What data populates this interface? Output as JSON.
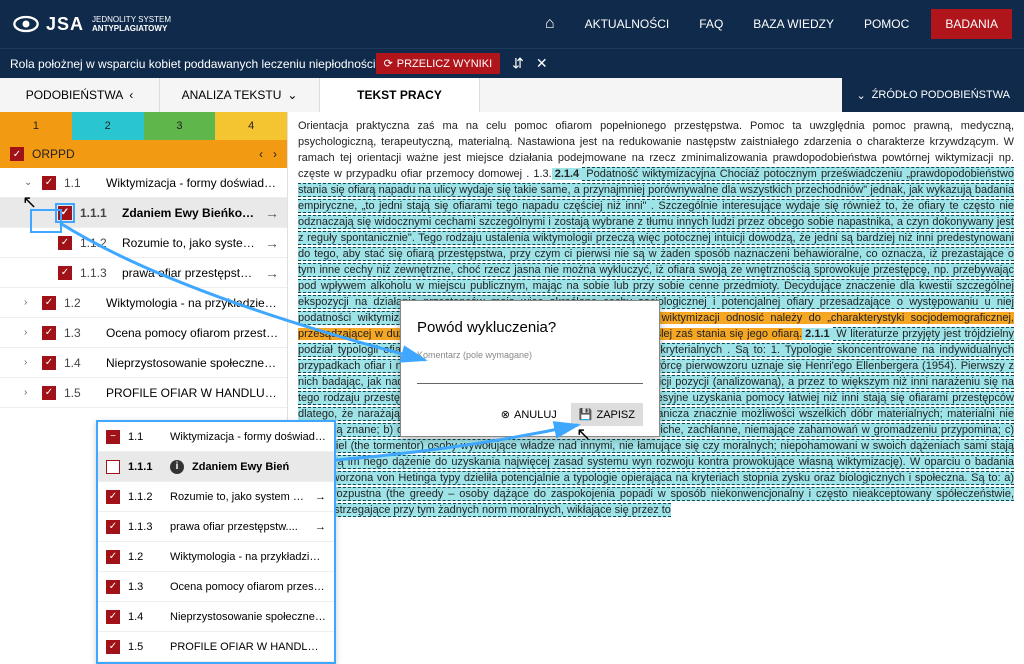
{
  "brand": {
    "name": "JSA",
    "sub1": "JEDNOLITY SYSTEM",
    "sub2": "ANTYPLAGIATOWY"
  },
  "nav": {
    "home": "⌂",
    "aktualnosci": "AKTUALNOŚCI",
    "faq": "FAQ",
    "baza": "BAZA WIEDZY",
    "pomoc": "POMOC",
    "badania": "BADANIA"
  },
  "subbar": {
    "title": "Rola położnej w wsparciu kobiet poddawanych leczeniu niepłodności",
    "recalc": "PRZELICZ WYNIKI",
    "collapse": "⇵",
    "close": "✕"
  },
  "tabs": {
    "t1": "PODOBIEŃSTWA",
    "arrow1": "‹",
    "t2": "ANALIZA TEKSTU",
    "arrow2": "⌄",
    "t3": "TEKST PRACY",
    "source": "ŹRÓDŁO PODOBIEŃSTWA",
    "sarrow": "⌄"
  },
  "colors": {
    "c1": "1",
    "c2": "2",
    "c3": "3",
    "c4": "4"
  },
  "orppd": {
    "label": "ORPPD",
    "prev": "‹",
    "next": "›"
  },
  "tree": [
    {
      "exp": "⌄",
      "num": "1.1",
      "label": "Wiktymizacja - formy doświadcza...",
      "indent": 1
    },
    {
      "exp": "",
      "num": "1.1.1",
      "label": "Zdaniem Ewy Bieńkowskiej....",
      "indent": 2,
      "selected": true,
      "arrow": "→"
    },
    {
      "exp": "",
      "num": "1.1.2",
      "label": "Rozumie to, jako system cec...",
      "indent": 2,
      "arrow": "→"
    },
    {
      "exp": "",
      "num": "1.1.3",
      "label": "prawa ofiar przestępstw...",
      "indent": 2,
      "arrow": "→"
    },
    {
      "exp": "›",
      "num": "1.2",
      "label": "Wiktymologia - na przykładzie of...",
      "indent": 1
    },
    {
      "exp": "›",
      "num": "1.3",
      "label": "Ocena pomocy ofiarom przestę...",
      "indent": 1
    },
    {
      "exp": "›",
      "num": "1.4",
      "label": "Nieprzystosowanie społeczne dzi...",
      "indent": 1
    },
    {
      "exp": "›",
      "num": "1.5",
      "label": "PROFILE OFIAR W HANDLU LU...",
      "indent": 1
    }
  ],
  "popup": [
    {
      "chk": "minus",
      "num": "1.1",
      "label": "Wiktymizacja - formy doświadcza..."
    },
    {
      "chk": "empty",
      "num": "1.1.1",
      "label": "Zdaniem Ewy Bień",
      "selected": true,
      "info": true
    },
    {
      "chk": "",
      "num": "1.1.2",
      "label": "Rozumie to, jako system cec...",
      "arrow": "→"
    },
    {
      "chk": "",
      "num": "1.1.3",
      "label": "prawa ofiar przestępstw....",
      "arrow": "→"
    },
    {
      "chk": "",
      "num": "1.2",
      "label": "Wiktymologia - na przykładzie of..."
    },
    {
      "chk": "",
      "num": "1.3",
      "label": "Ocena pomocy ofiarom przestę..."
    },
    {
      "chk": "",
      "num": "1.4",
      "label": "Nieprzystosowanie społeczne dzi..."
    },
    {
      "chk": "",
      "num": "1.5",
      "label": "PROFILE OFIAR W HANDLU LU..."
    }
  ],
  "modal": {
    "title": "Powód wykluczenia?",
    "hint": "Komentarz (pole wymagane)",
    "cancel": "ANULUJ",
    "save": "ZAPISZ"
  },
  "text": {
    "p1a": "Orientacja praktyczna zaś ma na celu pomoc ofiarom popełnionego przestępstwa. Pomoc ta uwzględnia pomoc prawną, medyczną, psychologiczną, terapeutyczną, materialną. Nastawiona jest na redukowanie następstw zaistniałego zdarzenia o charakterze krzywdzącym. W ramach tej orientacji ważne jest miejsce działania podejmowane na rzecz zminimalizowania prawdopodobieństwa powtórnej wiktymizacji np. częste w przypadku ofiar przemocy domowej . 1.3.",
    "b1": "2.1.4",
    "p1b": " Podatność wiktymizacyjna Chociaż potocznym przeświadczeniu „prawdopodobieństwo stania się ofiarą napadu na ulicy wydaje się takie same, a przynajmniej porównywalne dla wszystkich przechodniów\" jednak, jak wykazują badania empiryczne, „to jedni stają się ofiarami tego napadu częściej niż inni\" . Szczególnie interesujące wydaje się również to, że ofiary te często nie odznaczają się widocznymi cechami szczególnymi i zostają wybrane z tłumu innych ludzi przez obcego sobie napastnika, a czyn dokonywany jest z reguły spontanicznie\". Tego rodzaju ustalenia wiktymologii przeczą więc potocznej intuicji dowodzą, że jedni są bardziej niż inni predestynowani do tego, aby stać się ofiarą przestępstwa, przy czym ci pierwsi nie są w żaden sposób naznaczeni behawioralne, co oznacza, iż prezastające o tym inne cechy niż zewnętrzne, choć rzecz jasna nie można wykluczyć, iż ofiara swoją ze wnętrznością sprowokuje przestępcę, np. przebywając pod wpływem alkoholu w miejscu publicznym, mając na sobie lub przy sobie cenne przedmioty. Decydujące znaczenie dla kwestii szczególnej ekspozycji na działania przestępców mają więc określone cechy socjologicznej i potencjalnej ofiary przesadzające o występowaniu u niej podatności wiktymizacyjne.",
    "b2": "1.1.1",
    "p2": " Zdaniem Ewy Bieńkowskiej, pojęcie wiktymizacji odnosić należy do „charakterystyki socjodemograficznej, przesądzającej w dużej mierze „o stopniu narażenia przestępstwem\", ściślej zaś stania się jego ofiarą.",
    "b3": "2.1.1",
    "p3": " W literaturze przyjęty jest trójdzielny podział typologii ofiar, wyodrębniony według odmiennych nich cechach kryterialnych . Są to: 1. Typologie skoncentrowane na indywidualnych przypadkach ofiar i na tej podstawie tworzące generalne kategorie. Za twórcę pierwowzoru uznaje się Henri'ego Ellenbergera (1954). Pierwszy z nich badając, jak nadmieniono swoim zachowaniom nikt podobną z definicji pozycji (analizowaną), a przez to większym niż inni narażeniu się na tego rodzaju przestępstw; a) typ depresyjny (the depressive osoby depresyjne uzyskania pomocy łatwiej niż inni stają się ofiarami przestępców dlatego, że narażają nie żyją z izolacją społeczną, samotnością, co ogranicza znacznie możliwości wszelkich dóbr materialnych; materialni nie wpływają znane; b) osoby zachowań nie mówiąc o chęci gani jednostki ciche, zachłanne, niemające zahamowań w gromadzeniu przypomina; c) dręczyciel (the tormentor) osoby wywołujące władze nad innymi, nie łamujące się czy moralnych; niepohamowani w swoich dążeniach sami stają się ofiarą im nego dążenie do uzyskania najwięcej zasad systemu wyn rozwoju kontra prowokujące własną wiktymizację). W oparciu o badania ofiar stworzona von Hetinga typy dzieliła potencjalnie a typologie opierająca na kryteriach stopnia zysku oraz biologicznych i społeczna. Są to: a) osoba rozpustna (the greedy – osoby dążące do zaspokojenia popadi w sposób niekonwencjonalny i często nieakceptowany spółeczeństwie, nieprzestrzegające przy tym żadnych norm moralnych, wikłające się przez to"
  }
}
